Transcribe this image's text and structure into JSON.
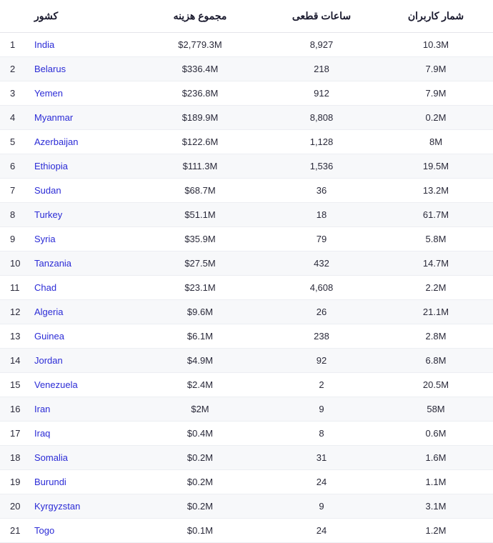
{
  "table": {
    "headers": {
      "rank": "",
      "country": "کشور",
      "cost": "مجموع هزینه",
      "hours": "ساعات قطعی",
      "users": "شمار کاربران"
    },
    "rows": [
      {
        "rank": "1",
        "country": "India",
        "cost": "$2,779.3M",
        "hours": "8,927",
        "users": "10.3M"
      },
      {
        "rank": "2",
        "country": "Belarus",
        "cost": "$336.4M",
        "hours": "218",
        "users": "7.9M"
      },
      {
        "rank": "3",
        "country": "Yemen",
        "cost": "$236.8M",
        "hours": "912",
        "users": "7.9M"
      },
      {
        "rank": "4",
        "country": "Myanmar",
        "cost": "$189.9M",
        "hours": "8,808",
        "users": "0.2M"
      },
      {
        "rank": "5",
        "country": "Azerbaijan",
        "cost": "$122.6M",
        "hours": "1,128",
        "users": "8M"
      },
      {
        "rank": "6",
        "country": "Ethiopia",
        "cost": "$111.3M",
        "hours": "1,536",
        "users": "19.5M"
      },
      {
        "rank": "7",
        "country": "Sudan",
        "cost": "$68.7M",
        "hours": "36",
        "users": "13.2M"
      },
      {
        "rank": "8",
        "country": "Turkey",
        "cost": "$51.1M",
        "hours": "18",
        "users": "61.7M"
      },
      {
        "rank": "9",
        "country": "Syria",
        "cost": "$35.9M",
        "hours": "79",
        "users": "5.8M"
      },
      {
        "rank": "10",
        "country": "Tanzania",
        "cost": "$27.5M",
        "hours": "432",
        "users": "14.7M"
      },
      {
        "rank": "11",
        "country": "Chad",
        "cost": "$23.1M",
        "hours": "4,608",
        "users": "2.2M"
      },
      {
        "rank": "12",
        "country": "Algeria",
        "cost": "$9.6M",
        "hours": "26",
        "users": "21.1M"
      },
      {
        "rank": "13",
        "country": "Guinea",
        "cost": "$6.1M",
        "hours": "238",
        "users": "2.8M"
      },
      {
        "rank": "14",
        "country": "Jordan",
        "cost": "$4.9M",
        "hours": "92",
        "users": "6.8M"
      },
      {
        "rank": "15",
        "country": "Venezuela",
        "cost": "$2.4M",
        "hours": "2",
        "users": "20.5M"
      },
      {
        "rank": "16",
        "country": "Iran",
        "cost": "$2M",
        "hours": "9",
        "users": "58M"
      },
      {
        "rank": "17",
        "country": "Iraq",
        "cost": "$0.4M",
        "hours": "8",
        "users": "0.6M"
      },
      {
        "rank": "18",
        "country": "Somalia",
        "cost": "$0.2M",
        "hours": "31",
        "users": "1.6M"
      },
      {
        "rank": "19",
        "country": "Burundi",
        "cost": "$0.2M",
        "hours": "24",
        "users": "1.1M"
      },
      {
        "rank": "20",
        "country": "Kyrgyzstan",
        "cost": "$0.2M",
        "hours": "9",
        "users": "3.1M"
      },
      {
        "rank": "21",
        "country": "Togo",
        "cost": "$0.1M",
        "hours": "24",
        "users": "1.2M"
      }
    ],
    "styling": {
      "link_color": "#2b2bd6",
      "text_color": "#1a1a2e",
      "row_alt_bg": "#f7f8fa",
      "border_color": "#eceef2",
      "font_size_header": 14,
      "font_size_body": 13
    }
  }
}
